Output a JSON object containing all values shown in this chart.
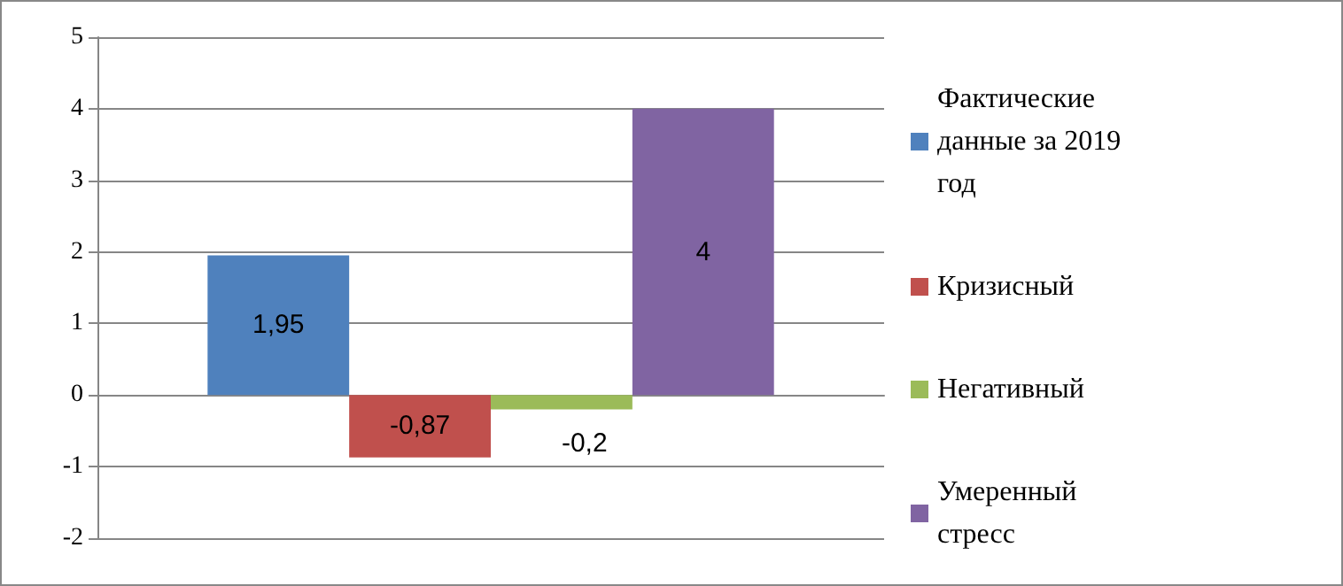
{
  "chart_data": {
    "type": "bar",
    "categories": [
      null
    ],
    "series": [
      {
        "name": "Фактические данные за 2019 год",
        "color": "#4f81bd",
        "values": [
          1.95
        ],
        "value_labels": [
          "1,95"
        ]
      },
      {
        "name": "Кризисный",
        "color": "#c0504d",
        "values": [
          -0.87
        ],
        "value_labels": [
          "-0,87"
        ]
      },
      {
        "name": "Негативный",
        "color": "#9bbb59",
        "values": [
          -0.2
        ],
        "value_labels": [
          "-0,2"
        ]
      },
      {
        "name": "Умеренный стресс",
        "color": "#8064a2",
        "values": [
          4
        ],
        "value_labels": [
          "4"
        ]
      }
    ],
    "ylim": [
      -2,
      5
    ],
    "yticks": [
      -2,
      -1,
      0,
      1,
      2,
      3,
      4,
      5
    ],
    "grid": "y",
    "legend": "right"
  }
}
